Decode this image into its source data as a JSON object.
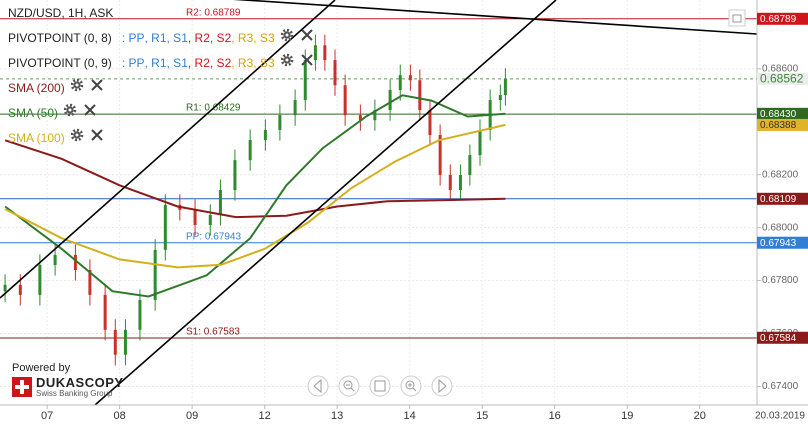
{
  "chart_data": {
    "type": "candlestick",
    "title": "NZD/USD, 1H, ASK",
    "xlim": [
      -0.65,
      9.79
    ],
    "xticks": [
      {
        "value": 0,
        "label": "07"
      },
      {
        "value": 1,
        "label": "08"
      },
      {
        "value": 2,
        "label": "09"
      },
      {
        "value": 3,
        "label": "12"
      },
      {
        "value": 4,
        "label": "13"
      },
      {
        "value": 5,
        "label": "14"
      },
      {
        "value": 6,
        "label": "15"
      },
      {
        "value": 7,
        "label": "16"
      },
      {
        "value": 8,
        "label": "19"
      },
      {
        "value": 9,
        "label": "20"
      }
    ],
    "ylim": [
      0.6733,
      0.6886
    ],
    "yticks": [
      {
        "value": 0.686,
        "label": "0.68600"
      },
      {
        "value": 0.682,
        "label": "0.68200"
      },
      {
        "value": 0.68,
        "label": "0.68000"
      },
      {
        "value": 0.678,
        "label": "0.67800"
      },
      {
        "value": 0.676,
        "label": "0.67600"
      },
      {
        "value": 0.674,
        "label": "0.67400"
      }
    ],
    "grid": true,
    "up_color": "#2e8b2e",
    "down_color": "#c8322a",
    "x": [
      -0.58,
      -0.37,
      -0.1,
      0.11,
      0.39,
      0.59,
      0.8,
      0.94,
      1.08,
      1.28,
      1.49,
      1.63,
      1.83,
      2.04,
      2.25,
      2.39,
      2.59,
      2.8,
      3.01,
      3.21,
      3.42,
      3.56,
      3.7,
      3.83,
      3.97,
      4.11,
      4.32,
      4.52,
      4.73,
      4.87,
      5.01,
      5.14,
      5.28,
      5.42,
      5.56,
      5.7,
      5.83,
      5.97,
      6.11,
      6.25,
      6.32
    ],
    "open": [
      0.6776,
      0.67784,
      0.67746,
      0.67859,
      0.67897,
      0.6784,
      0.67746,
      0.67614,
      0.6752,
      0.67614,
      0.67727,
      0.67916,
      0.68086,
      0.68067,
      0.6801,
      0.68048,
      0.68142,
      0.68255,
      0.68331,
      0.68369,
      0.68425,
      0.68482,
      0.68633,
      0.68689,
      0.68633,
      0.68538,
      0.68425,
      0.68406,
      0.68444,
      0.6852,
      0.68576,
      0.68557,
      0.68444,
      0.6835,
      0.68199,
      0.68142,
      0.68199,
      0.68274,
      0.68369,
      0.68482,
      0.68501
    ],
    "high": [
      0.67824,
      0.67824,
      0.67899,
      0.67937,
      0.67937,
      0.6788,
      0.67786,
      0.67654,
      0.67654,
      0.67767,
      0.67956,
      0.68126,
      0.68126,
      0.68107,
      0.68088,
      0.68182,
      0.68295,
      0.68371,
      0.68409,
      0.68465,
      0.68522,
      0.68673,
      0.68729,
      0.68729,
      0.68673,
      0.68578,
      0.68465,
      0.68484,
      0.6856,
      0.68616,
      0.68616,
      0.68597,
      0.68484,
      0.6839,
      0.68239,
      0.68239,
      0.68314,
      0.68409,
      0.68522,
      0.68541,
      0.68602
    ],
    "low": [
      0.6772,
      0.67706,
      0.67706,
      0.67819,
      0.678,
      0.67706,
      0.67574,
      0.6748,
      0.6748,
      0.67574,
      0.67687,
      0.67876,
      0.68027,
      0.6797,
      0.6797,
      0.68008,
      0.68102,
      0.68215,
      0.68291,
      0.68329,
      0.68385,
      0.68442,
      0.68593,
      0.68593,
      0.68498,
      0.68385,
      0.68366,
      0.68366,
      0.68404,
      0.6848,
      0.68517,
      0.68404,
      0.6831,
      0.68159,
      0.68102,
      0.68102,
      0.68159,
      0.68234,
      0.68329,
      0.68442,
      0.68461
    ],
    "close": [
      0.67784,
      0.67746,
      0.67859,
      0.67897,
      0.6784,
      0.67746,
      0.67614,
      0.6752,
      0.67614,
      0.67727,
      0.67916,
      0.68086,
      0.68067,
      0.6801,
      0.68048,
      0.68142,
      0.68255,
      0.68331,
      0.68369,
      0.68425,
      0.68482,
      0.68633,
      0.68689,
      0.68633,
      0.68538,
      0.68425,
      0.68406,
      0.68444,
      0.6852,
      0.68576,
      0.68557,
      0.68444,
      0.6835,
      0.68199,
      0.68142,
      0.68199,
      0.68274,
      0.68369,
      0.68482,
      0.68501,
      0.68562
    ],
    "series": [
      {
        "name": "SMA (200)",
        "color": "#8b1a1a",
        "x": [
          -0.58,
          0.2,
          1.0,
          1.8,
          2.6,
          3.3,
          4.0,
          4.7,
          5.5,
          6.32
        ],
        "values": [
          0.6833,
          0.6826,
          0.6816,
          0.6808,
          0.6804,
          0.68045,
          0.6808,
          0.681,
          0.68104,
          0.68109
        ]
      },
      {
        "name": "SMA (50)",
        "color": "#2f7a2a",
        "x": [
          -0.58,
          0.2,
          0.9,
          1.4,
          2.2,
          2.8,
          3.3,
          3.8,
          4.4,
          4.9,
          5.3,
          5.8,
          6.32
        ],
        "values": [
          0.6808,
          0.6792,
          0.6776,
          0.6774,
          0.6782,
          0.6796,
          0.6816,
          0.683,
          0.6842,
          0.685,
          0.6848,
          0.6842,
          0.6843
        ]
      },
      {
        "name": "SMA (100)",
        "color": "#d4b01c",
        "x": [
          -0.58,
          0.2,
          1.0,
          1.8,
          2.4,
          3.0,
          3.6,
          4.2,
          4.8,
          5.4,
          6.32
        ],
        "values": [
          0.6807,
          0.6796,
          0.6788,
          0.6785,
          0.6786,
          0.6792,
          0.6802,
          0.6815,
          0.6825,
          0.6833,
          0.68388
        ]
      }
    ],
    "levels": [
      {
        "label": "R2: 0.68789",
        "value": 0.68789,
        "color": "#c0141c"
      },
      {
        "label": "R1: 0.68429",
        "value": 0.68429,
        "color": "#2d6a1f"
      },
      {
        "label": "PP: 0.67943",
        "value": 0.67943,
        "color": "#2f7fd6"
      },
      {
        "label": "S1: 0.67583",
        "value": 0.67583,
        "color": "#8b1a1a"
      }
    ],
    "price_tags": [
      {
        "value": 0.68789,
        "label": "0.68789",
        "color": "#d0141c",
        "text_color": "#ffffff"
      },
      {
        "value": 0.68562,
        "label": "0.68562",
        "color": "#ececec",
        "text_color": "#3a8a3a",
        "line_color": "#5aa05a",
        "dashed": true
      },
      {
        "value": 0.6843,
        "label": "0.68430",
        "color": "#2d6a1f",
        "text_color": "#ffffff"
      },
      {
        "value": 0.68388,
        "label": "0.68388",
        "color": "#e0b428",
        "text_color": "#333333"
      },
      {
        "value": 0.68109,
        "label": "0.68109",
        "color": "#8b1a1a",
        "text_color": "#ffffff",
        "line_color": "#2f5fbf"
      },
      {
        "value": 0.67943,
        "label": "0.67943",
        "color": "#2f7fd6",
        "text_color": "#ffffff"
      },
      {
        "value": 0.67584,
        "label": "0.67584",
        "color": "#8b1a1a",
        "text_color": "#ffffff"
      }
    ]
  },
  "indicators": [
    {
      "name": "PIVOTPOINT (0, 8)",
      "tokens": [
        {
          "text": ": PP",
          "color": "#2f7fd6"
        },
        {
          "text": ", R1",
          "color": "#2f7fd6"
        },
        {
          "text": ", S1",
          "color": "#2f7fd6"
        },
        {
          "text": ", R2",
          "color": "#d0141c"
        },
        {
          "text": ", S2",
          "color": "#d0141c"
        },
        {
          "text": ", R3",
          "color": "#d9a400"
        },
        {
          "text": ", S3",
          "color": "#d9a400"
        }
      ]
    },
    {
      "name": "PIVOTPOINT (0, 9)",
      "tokens": [
        {
          "text": ": PP",
          "color": "#2f7fd6"
        },
        {
          "text": ", R1",
          "color": "#2f7fd6"
        },
        {
          "text": ", S1",
          "color": "#2f7fd6"
        },
        {
          "text": ", R2",
          "color": "#d0141c"
        },
        {
          "text": ", S2",
          "color": "#d0141c"
        },
        {
          "text": ", R3",
          "color": "#d9a400"
        },
        {
          "text": ", S3",
          "color": "#d9a400"
        }
      ]
    }
  ],
  "footer": {
    "powered_by": "Powered by",
    "brand": "DUKASCOPY",
    "tagline": "Swiss Banking Group",
    "date": "20.03.2019"
  }
}
